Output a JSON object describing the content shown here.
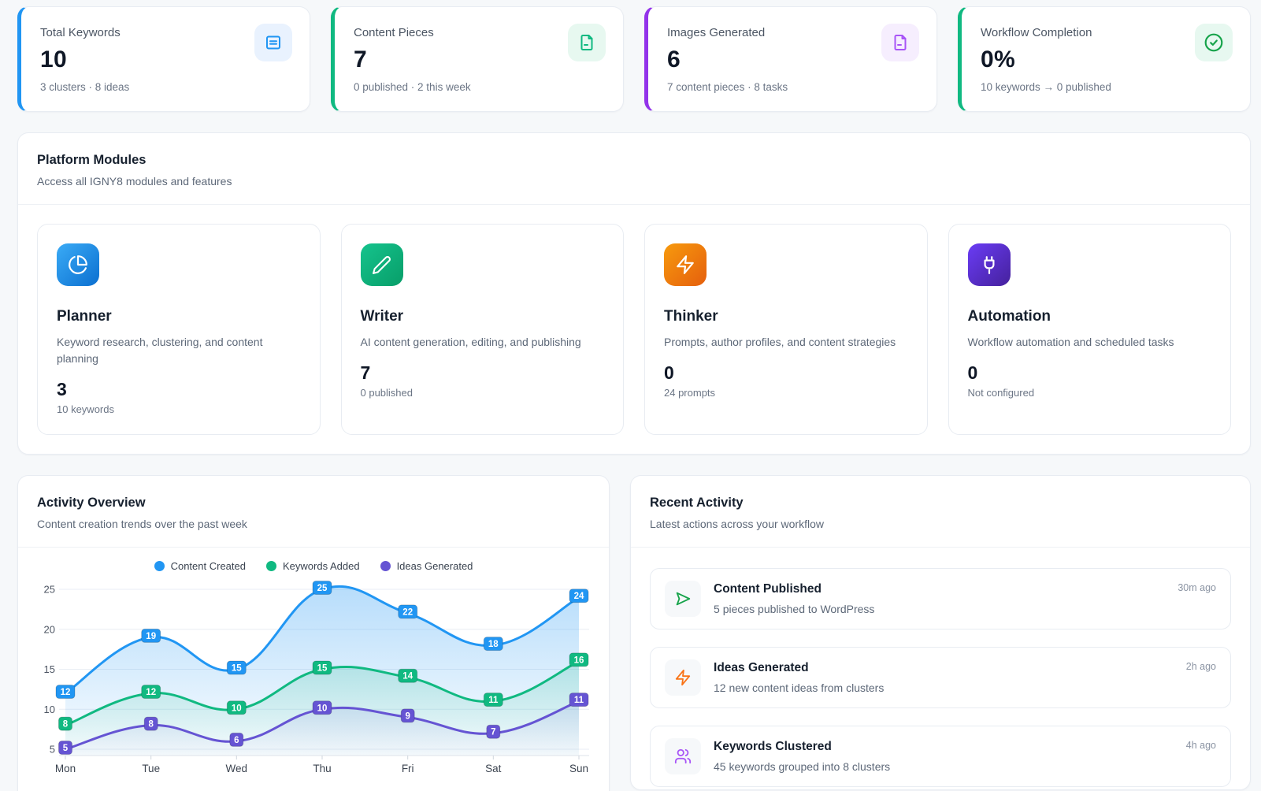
{
  "theme": {
    "page_bg": "#f6f8fa",
    "card_border": "#e8ecf2",
    "accent_blue": "#2196f3",
    "accent_green": "#10b981",
    "accent_purple": "#9333ea",
    "accent_orange": "#f97316",
    "chart_purple": "#6554d3"
  },
  "stats": [
    {
      "label": "Total Keywords",
      "value": "10",
      "sub": "3 clusters · 8 ideas",
      "accent": "#2196f3",
      "icon": "list-icon",
      "icon_bg": "#e9f2fe"
    },
    {
      "label": "Content Pieces",
      "value": "7",
      "sub": "0 published · 2 this week",
      "accent": "#10b981",
      "icon": "file-icon",
      "icon_bg": "#e7f8f0"
    },
    {
      "label": "Images Generated",
      "value": "6",
      "sub": "7 content pieces · 8 tasks",
      "accent": "#9333ea",
      "icon": "file-image-icon",
      "icon_bg": "#f6eefe"
    },
    {
      "label": "Workflow Completion",
      "value": "0%",
      "sub": "10 keywords → 0 published",
      "accent": "#10b981",
      "icon": "check-circle-icon",
      "icon_bg": "#e7f8f0"
    }
  ],
  "modules_section": {
    "title": "Platform Modules",
    "subtitle": "Access all IGNY8 modules and features",
    "modules": [
      {
        "name": "Planner",
        "desc": "Keyword research, clustering, and content planning",
        "value": "3",
        "sub": "10 keywords",
        "icon": "pie-chart-icon"
      },
      {
        "name": "Writer",
        "desc": "AI content generation, editing, and publishing",
        "value": "7",
        "sub": "0 published",
        "icon": "pencil-icon"
      },
      {
        "name": "Thinker",
        "desc": "Prompts, author profiles, and content strategies",
        "value": "0",
        "sub": "24 prompts",
        "icon": "zap-icon"
      },
      {
        "name": "Automation",
        "desc": "Workflow automation and scheduled tasks",
        "value": "0",
        "sub": "Not configured",
        "icon": "plug-icon"
      }
    ]
  },
  "activity_overview": {
    "title": "Activity Overview",
    "subtitle": "Content creation trends over the past week"
  },
  "recent_activity": {
    "title": "Recent Activity",
    "subtitle": "Latest actions across your workflow",
    "items": [
      {
        "title": "Content Published",
        "desc": "5 pieces published to WordPress",
        "time": "30m ago",
        "icon": "send-icon",
        "color": "#16a34a"
      },
      {
        "title": "Ideas Generated",
        "desc": "12 new content ideas from clusters",
        "time": "2h ago",
        "icon": "zap-icon",
        "color": "#f97316"
      },
      {
        "title": "Keywords Clustered",
        "desc": "45 keywords grouped into 8 clusters",
        "time": "4h ago",
        "icon": "users-icon",
        "color": "#a855f7"
      }
    ]
  },
  "chart_data": {
    "type": "area",
    "x": [
      "Mon",
      "Tue",
      "Wed",
      "Thu",
      "Fri",
      "Sat",
      "Sun"
    ],
    "series": [
      {
        "name": "Content Created",
        "color": "#2196f3",
        "values": [
          12,
          19,
          15,
          25,
          22,
          18,
          24
        ]
      },
      {
        "name": "Keywords Added",
        "color": "#10b981",
        "values": [
          8,
          12,
          10,
          15,
          14,
          11,
          16
        ]
      },
      {
        "name": "Ideas Generated",
        "color": "#6554d3",
        "values": [
          5,
          8,
          6,
          10,
          9,
          7,
          11
        ]
      }
    ],
    "ylim": [
      5,
      25
    ],
    "yticks": [
      5,
      10,
      15,
      20,
      25
    ],
    "grid": true,
    "smooth": true,
    "data_labels": true,
    "legend_position": "top"
  }
}
